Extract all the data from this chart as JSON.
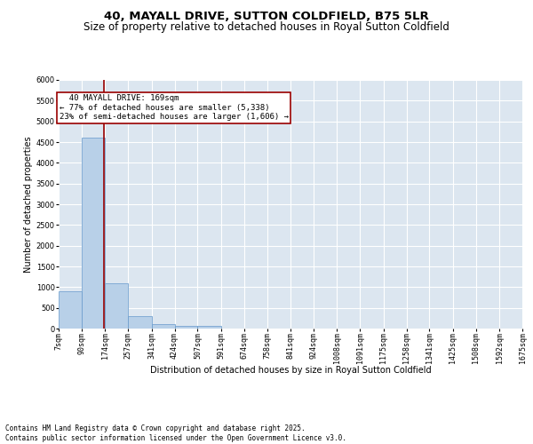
{
  "title": "40, MAYALL DRIVE, SUTTON COLDFIELD, B75 5LR",
  "subtitle": "Size of property relative to detached houses in Royal Sutton Coldfield",
  "xlabel": "Distribution of detached houses by size in Royal Sutton Coldfield",
  "ylabel": "Number of detached properties",
  "bins": [
    7,
    90,
    174,
    257,
    341,
    424,
    507,
    591,
    674,
    758,
    841,
    924,
    1008,
    1091,
    1175,
    1258,
    1341,
    1425,
    1508,
    1592,
    1675
  ],
  "bar_heights": [
    900,
    4600,
    1100,
    300,
    100,
    60,
    60,
    0,
    0,
    0,
    0,
    0,
    0,
    0,
    0,
    0,
    0,
    0,
    0,
    0
  ],
  "bar_color": "#b8d0e8",
  "bar_edge_color": "#6699cc",
  "property_size": 169,
  "vline_color": "#990000",
  "annotation_text": "  40 MAYALL DRIVE: 169sqm  \n← 77% of detached houses are smaller (5,338)\n23% of semi-detached houses are larger (1,606) →",
  "annotation_box_color": "#990000",
  "ylim": [
    0,
    6000
  ],
  "yticks": [
    0,
    500,
    1000,
    1500,
    2000,
    2500,
    3000,
    3500,
    4000,
    4500,
    5000,
    5500,
    6000
  ],
  "background_color": "#dce6f0",
  "grid_color": "#ffffff",
  "fig_background": "#ffffff",
  "footer": "Contains HM Land Registry data © Crown copyright and database right 2025.\nContains public sector information licensed under the Open Government Licence v3.0.",
  "title_fontsize": 9.5,
  "subtitle_fontsize": 8.5,
  "axis_label_fontsize": 7,
  "tick_fontsize": 6,
  "annotation_fontsize": 6.5,
  "footer_fontsize": 5.5
}
